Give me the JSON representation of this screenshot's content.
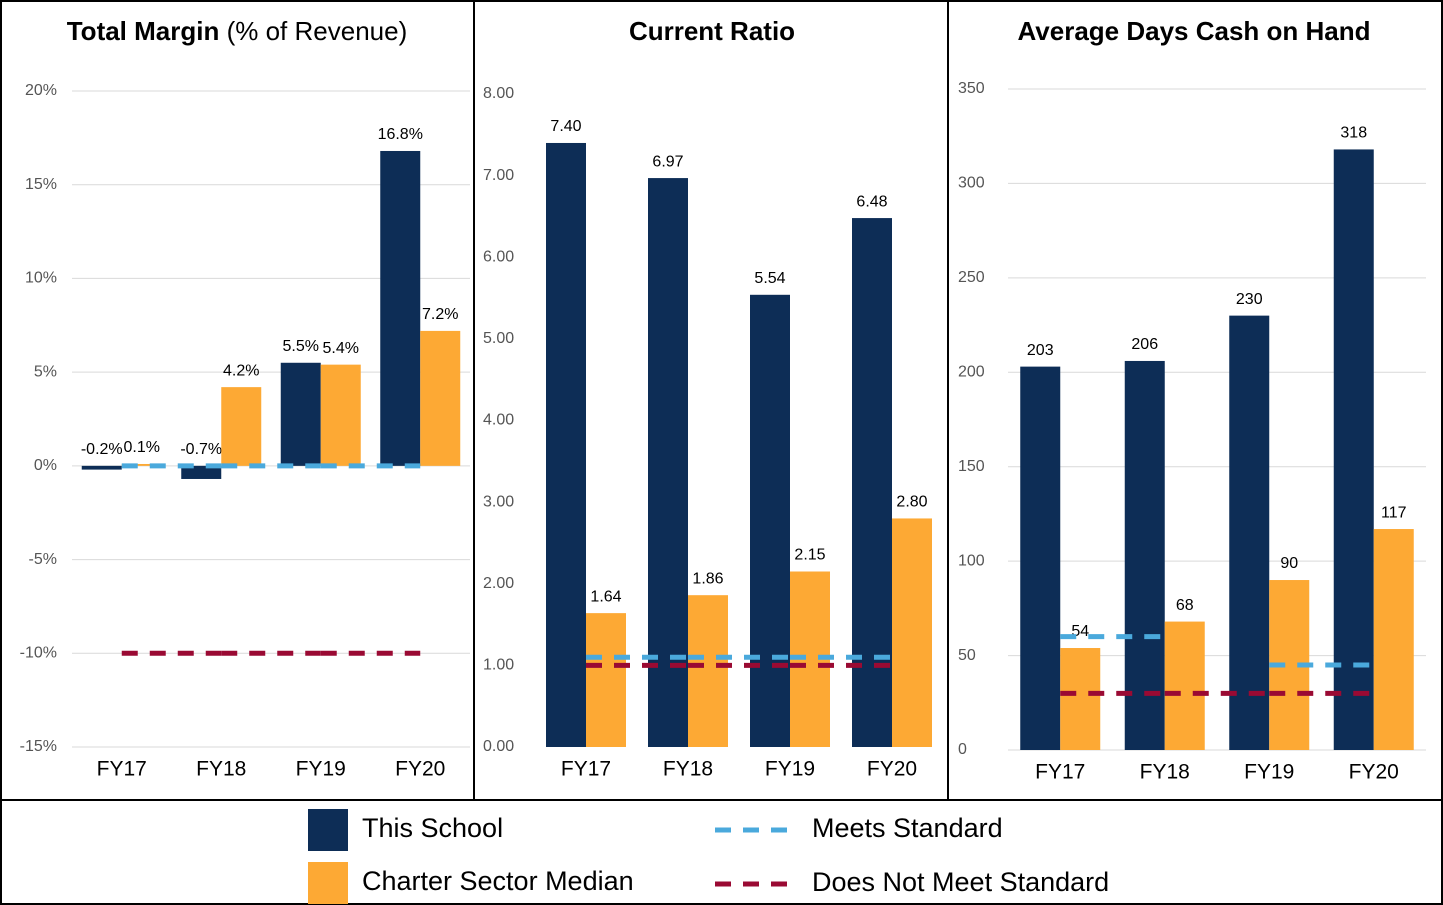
{
  "chart_data": [
    {
      "type": "bar",
      "title": "Total Margin",
      "subtitle": "(% of Revenue)",
      "categories": [
        "FY17",
        "FY18",
        "FY19",
        "FY20"
      ],
      "ylim": [
        -15,
        20
      ],
      "yticks": [
        {
          "value": -15,
          "label": "-15%"
        },
        {
          "value": -10,
          "label": "-10%"
        },
        {
          "value": -5,
          "label": "-5%"
        },
        {
          "value": 0,
          "label": "0%"
        },
        {
          "value": 5,
          "label": "5%"
        },
        {
          "value": 10,
          "label": "10%"
        },
        {
          "value": 15,
          "label": "15%"
        },
        {
          "value": 20,
          "label": "20%"
        }
      ],
      "grid": true,
      "series": [
        {
          "name": "This School",
          "color": "#0d2d56",
          "values": [
            -0.2,
            -0.7,
            5.5,
            16.8
          ],
          "value_labels": [
            "-0.2%",
            "-0.7%",
            "5.5%",
            "16.8%"
          ]
        },
        {
          "name": "Charter Sector Median",
          "color": "#fda934",
          "values": [
            0.1,
            4.2,
            5.4,
            7.2
          ],
          "value_labels": [
            "0.1%",
            "4.2%",
            "5.4%",
            "7.2%"
          ]
        },
        {
          "name": "Meets Standard",
          "type": "line",
          "dashed": true,
          "color": "#4aa9dc",
          "values": [
            0,
            0,
            0,
            0
          ]
        },
        {
          "name": "Does Not Meet Standard",
          "type": "line",
          "dashed": true,
          "color": "#9a0a33",
          "values": [
            -10,
            -10,
            -10,
            -10
          ]
        }
      ]
    },
    {
      "type": "bar",
      "title": "Current Ratio",
      "categories": [
        "FY17",
        "FY18",
        "FY19",
        "FY20"
      ],
      "ylim": [
        0,
        8
      ],
      "yticks": [
        {
          "value": 0,
          "label": "0.00"
        },
        {
          "value": 1,
          "label": "1.00"
        },
        {
          "value": 2,
          "label": "2.00"
        },
        {
          "value": 3,
          "label": "3.00"
        },
        {
          "value": 4,
          "label": "4.00"
        },
        {
          "value": 5,
          "label": "5.00"
        },
        {
          "value": 6,
          "label": "6.00"
        },
        {
          "value": 7,
          "label": "7.00"
        },
        {
          "value": 8,
          "label": "8.00"
        }
      ],
      "grid": false,
      "series": [
        {
          "name": "This School",
          "color": "#0d2d56",
          "values": [
            7.4,
            6.97,
            5.54,
            6.48
          ],
          "value_labels": [
            "7.40",
            "6.97",
            "5.54",
            "6.48"
          ]
        },
        {
          "name": "Charter Sector Median",
          "color": "#fda934",
          "values": [
            1.64,
            1.86,
            2.15,
            2.8
          ],
          "value_labels": [
            "1.64",
            "1.86",
            "2.15",
            "2.80"
          ]
        },
        {
          "name": "Meets Standard",
          "type": "line",
          "dashed": true,
          "color": "#4aa9dc",
          "values": [
            1.1,
            1.1,
            1.1,
            1.1
          ]
        },
        {
          "name": "Does Not Meet Standard",
          "type": "line",
          "dashed": true,
          "color": "#9a0a33",
          "values": [
            1,
            1,
            1,
            1
          ]
        }
      ]
    },
    {
      "type": "bar",
      "title": "Average Days Cash on Hand",
      "categories": [
        "FY17",
        "FY18",
        "FY19",
        "FY20"
      ],
      "ylim": [
        0,
        350
      ],
      "yticks": [
        0,
        50,
        100,
        150,
        200,
        250,
        300,
        350
      ],
      "grid": true,
      "series": [
        {
          "name": "This School",
          "color": "#0d2d56",
          "values": [
            203,
            206,
            230,
            318
          ]
        },
        {
          "name": "Charter Sector Median",
          "color": "#fda934",
          "values": [
            54,
            68,
            90,
            117
          ]
        },
        {
          "name": "Meets Standard",
          "type": "line",
          "dashed": true,
          "color": "#4aa9dc",
          "values": [
            60,
            60,
            45,
            45
          ]
        },
        {
          "name": "Does Not Meet Standard",
          "type": "line",
          "dashed": true,
          "color": "#9a0a33",
          "values": [
            30,
            30,
            30,
            30
          ]
        }
      ]
    }
  ]
}
